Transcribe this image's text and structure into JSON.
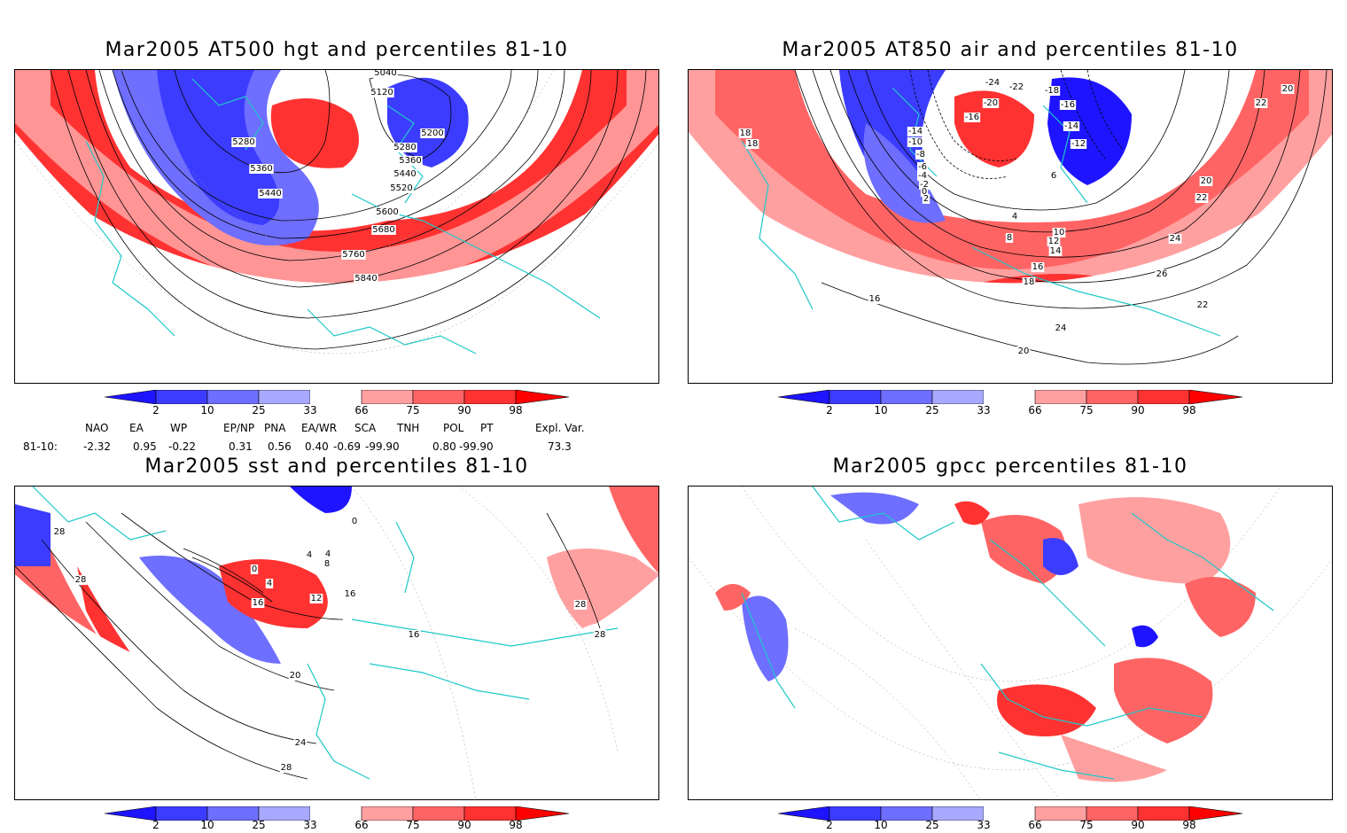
{
  "panels": [
    {
      "id": "hgt",
      "title": "Mar2005 AT500 hgt and percentiles 81-10",
      "contour_labels": [
        "5040",
        "5120",
        "5200",
        "5280",
        "5280",
        "5360",
        "5360",
        "5440",
        "5440",
        "5520",
        "5600",
        "5680",
        "5760",
        "5840"
      ]
    },
    {
      "id": "air",
      "title": "Mar2005 AT850 air and percentiles 81-10",
      "contour_labels": [
        "-24",
        "-22",
        "-18",
        "-20",
        "-16",
        "-16",
        "-14",
        "-14",
        "-12",
        "-10",
        "-8",
        "-6",
        "-4",
        "-2",
        "0",
        "2",
        "4",
        "6",
        "8",
        "10",
        "12",
        "14",
        "16",
        "16",
        "18",
        "18",
        "18",
        "20",
        "20",
        "20",
        "22",
        "22",
        "22",
        "24",
        "24",
        "26"
      ]
    },
    {
      "id": "sst",
      "title": "Mar2005 sst and percentiles 81-10",
      "contour_labels": [
        "28",
        "28",
        "0",
        "0",
        "4",
        "4",
        "4",
        "8",
        "12",
        "16",
        "16",
        "16",
        "20",
        "24",
        "28",
        "28",
        "28"
      ]
    },
    {
      "id": "gpcc",
      "title": "Mar2005 gpcc percentiles 81-10",
      "contour_labels": []
    }
  ],
  "colorbar": {
    "labels": [
      "2",
      "10",
      "25",
      "33",
      "66",
      "75",
      "90",
      "98"
    ],
    "colors": [
      "#1e14ff",
      "#3c3cff",
      "#6e6eff",
      "#a8a8ff",
      "#ffffff",
      "#ffa0a0",
      "#ff6464",
      "#ff3232",
      "#ff0000"
    ]
  },
  "indices": {
    "headers": [
      "NAO",
      "EA",
      "WP",
      "EP/NP",
      "PNA",
      "EA/WR",
      "SCA",
      "TNH",
      "POL",
      "PT",
      "Expl. Var."
    ],
    "row_label": "81-10:",
    "values": [
      "-2.32",
      "0.95",
      "-0.22",
      "0.31",
      "0.56",
      "0.40",
      "-0.69",
      "-99.90",
      "0.80",
      "-99.90",
      "73.3"
    ]
  },
  "colors": {
    "coast": "#1ec8c8",
    "red": "#ff3232",
    "pink": "#ffa0a0",
    "blue": "#3c3cff"
  }
}
